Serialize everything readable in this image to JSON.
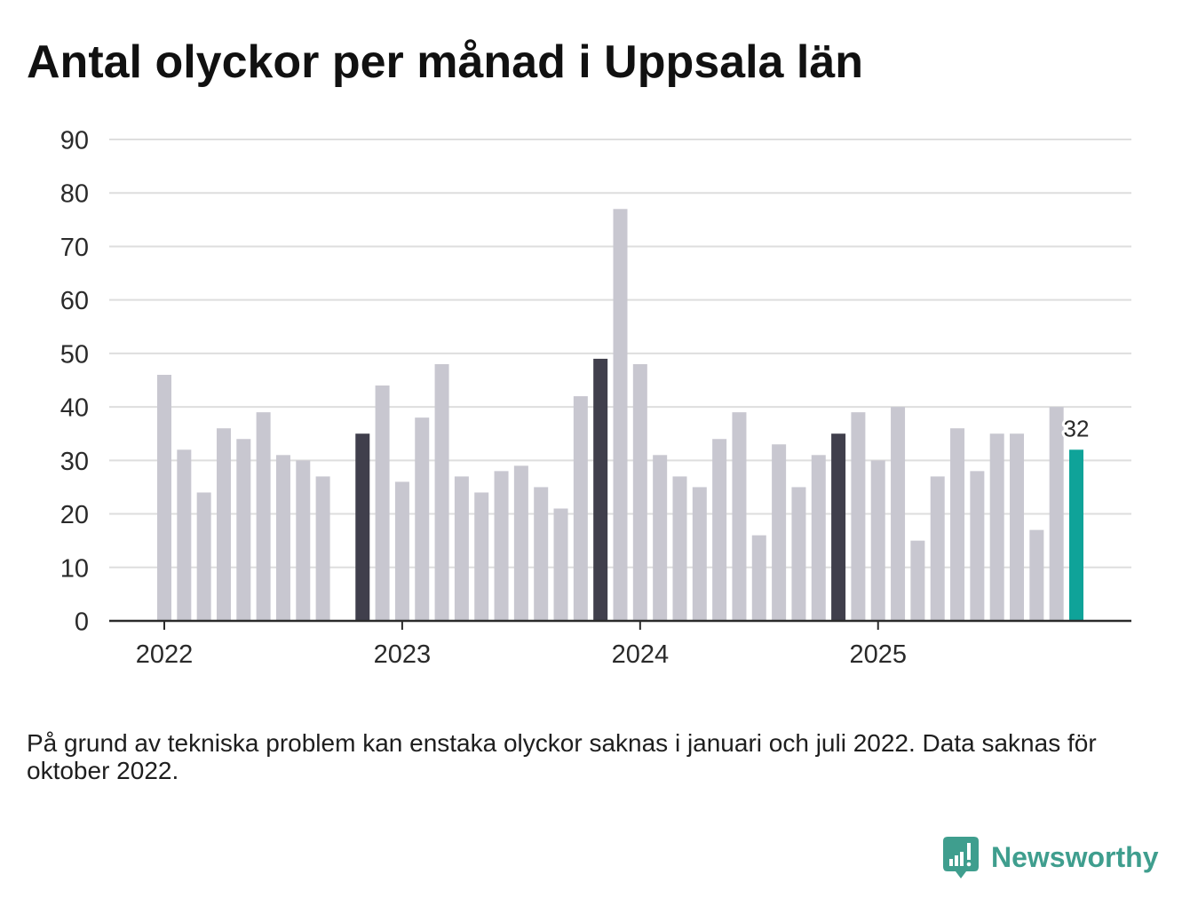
{
  "chart_data": {
    "type": "bar",
    "title": "Antal olyckor per månad i Uppsala län",
    "ylim": [
      0,
      90
    ],
    "y_ticks": [
      0,
      10,
      20,
      30,
      40,
      50,
      60,
      70,
      80,
      90
    ],
    "grid": true,
    "years": [
      {
        "label": "2022",
        "values": [
          46,
          32,
          24,
          36,
          34,
          39,
          31,
          30,
          27,
          null,
          35,
          44
        ]
      },
      {
        "label": "2023",
        "values": [
          26,
          38,
          48,
          27,
          24,
          28,
          29,
          25,
          21,
          42,
          49,
          77
        ]
      },
      {
        "label": "2024",
        "values": [
          48,
          31,
          27,
          25,
          34,
          39,
          16,
          33,
          25,
          31,
          35,
          39
        ]
      },
      {
        "label": "2025",
        "values": [
          30,
          40,
          15,
          27,
          36,
          28,
          35,
          35,
          17,
          40,
          32
        ]
      }
    ],
    "highlight_month_number": 11,
    "latest_value_label": "32"
  },
  "footnote": "På grund av tekniska problem kan enstaka olyckor saknas i januari och juli 2022. Data saknas för oktober 2022.",
  "logo": {
    "text": "Newsworthy",
    "icon": "newsworthy-logo-icon"
  },
  "colors": {
    "background": "#ffffff",
    "text": "#2a2a2a",
    "bar_default": "#c8c7d0",
    "bar_same_month": "#403f4c",
    "bar_latest": "#0fa399",
    "gridline": "#dedede",
    "axis": "#2b2b2b",
    "brand": "#3f9e8e"
  }
}
